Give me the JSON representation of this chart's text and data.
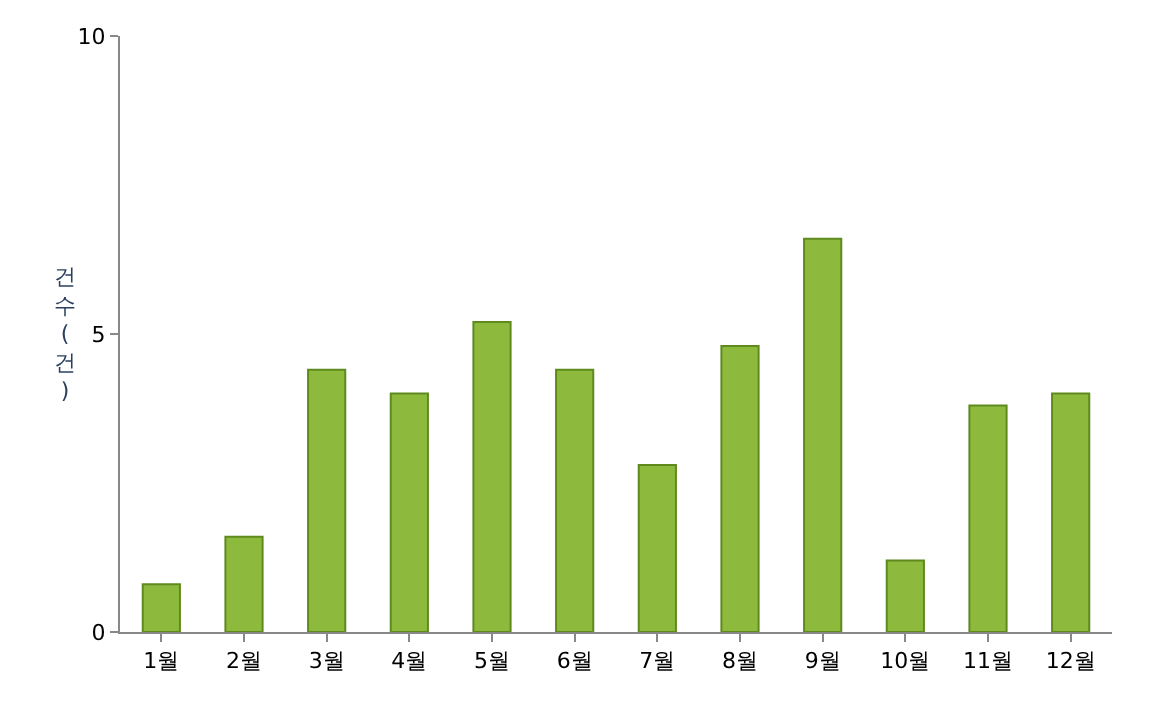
{
  "chart_data": {
    "type": "bar",
    "ylabel": "건수(건)",
    "categories": [
      "1월",
      "2월",
      "3월",
      "4월",
      "5월",
      "6월",
      "7월",
      "8월",
      "9월",
      "10월",
      "11월",
      "12월"
    ],
    "values": [
      0.8,
      1.6,
      4.4,
      4.0,
      5.2,
      4.4,
      2.8,
      4.8,
      6.6,
      1.2,
      3.8,
      4.0
    ],
    "color": "#8dba3c",
    "ylim": [
      0,
      10
    ],
    "yticks": [
      0,
      5,
      10
    ],
    "grid": false,
    "legend": false
  }
}
